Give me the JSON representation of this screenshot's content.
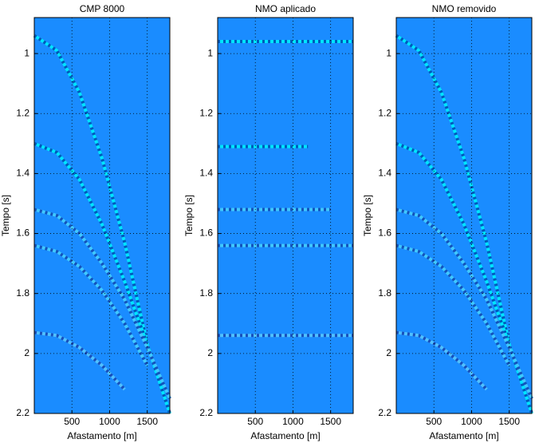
{
  "chart_data": [
    {
      "type": "line",
      "title": "CMP 8000",
      "xlabel": "Afastamento [m]",
      "ylabel": "Tempo [s]",
      "x": [
        0,
        300,
        600,
        900,
        1200,
        1500,
        1800
      ],
      "series": [
        {
          "color": "#00e5ff",
          "values": [
            0.94,
            0.99,
            1.13,
            1.35,
            1.63,
            1.97,
            null
          ]
        },
        {
          "color": "#00e5ff",
          "values": [
            1.3,
            1.33,
            1.42,
            1.57,
            1.76,
            1.97,
            2.2
          ]
        },
        {
          "color": "#40c8ff",
          "values": [
            1.52,
            1.54,
            1.6,
            1.7,
            1.82,
            1.98,
            2.15
          ]
        },
        {
          "color": "#40c8ff",
          "values": [
            1.64,
            1.66,
            1.71,
            1.79,
            1.9,
            2.04,
            null
          ]
        },
        {
          "color": "#50c0ff",
          "values": [
            1.93,
            1.94,
            1.98,
            2.04,
            2.12,
            null,
            null
          ]
        }
      ],
      "xlim": [
        0,
        1800
      ],
      "ylim": [
        0.88,
        2.2
      ],
      "y_reversed": true,
      "xticks": [
        500,
        1000,
        1500
      ],
      "yticks": [
        1,
        1.2,
        1.4,
        1.6,
        1.8,
        2,
        2.2
      ],
      "grid": true,
      "background": "#1a8cff"
    },
    {
      "type": "line",
      "title": "NMO aplicado",
      "xlabel": "Afastamento [m]",
      "ylabel": "Tempo [s]",
      "x": [
        0,
        300,
        600,
        900,
        1200,
        1500,
        1800
      ],
      "series": [
        {
          "color": "#00e5ff",
          "values": [
            0.96,
            0.96,
            0.96,
            0.96,
            0.96,
            0.96,
            0.96
          ]
        },
        {
          "color": "#00e5ff",
          "values": [
            1.31,
            1.31,
            1.31,
            1.31,
            1.31,
            null,
            null
          ]
        },
        {
          "color": "#40c8ff",
          "values": [
            1.52,
            1.52,
            1.52,
            1.52,
            1.52,
            1.52,
            null
          ]
        },
        {
          "color": "#40c8ff",
          "values": [
            1.64,
            1.64,
            1.64,
            1.64,
            1.64,
            1.64,
            1.64
          ]
        },
        {
          "color": "#50c0ff",
          "values": [
            1.94,
            1.94,
            1.94,
            1.94,
            1.94,
            1.94,
            1.94
          ]
        }
      ],
      "xlim": [
        0,
        1800
      ],
      "ylim": [
        0.88,
        2.2
      ],
      "y_reversed": true,
      "xticks": [
        500,
        1000,
        1500
      ],
      "yticks": [
        1,
        1.2,
        1.4,
        1.6,
        1.8,
        2,
        2.2
      ],
      "grid": true,
      "background": "#1a8cff"
    },
    {
      "type": "line",
      "title": "NMO removido",
      "xlabel": "Afastamento [m]",
      "ylabel": "Tempo [s]",
      "x": [
        0,
        300,
        600,
        900,
        1200,
        1500,
        1800
      ],
      "series": [
        {
          "color": "#00e5ff",
          "values": [
            0.94,
            0.99,
            1.13,
            1.35,
            1.63,
            1.97,
            null
          ]
        },
        {
          "color": "#00e5ff",
          "values": [
            1.3,
            1.33,
            1.42,
            1.57,
            1.76,
            1.97,
            2.2
          ]
        },
        {
          "color": "#40c8ff",
          "values": [
            1.52,
            1.54,
            1.6,
            1.7,
            1.82,
            1.98,
            2.15
          ]
        },
        {
          "color": "#40c8ff",
          "values": [
            1.64,
            1.66,
            1.71,
            1.79,
            1.9,
            2.04,
            null
          ]
        },
        {
          "color": "#50c0ff",
          "values": [
            1.93,
            1.94,
            1.98,
            2.04,
            2.12,
            null,
            null
          ]
        }
      ],
      "xlim": [
        0,
        1800
      ],
      "ylim": [
        0.88,
        2.2
      ],
      "y_reversed": true,
      "xticks": [
        500,
        1000,
        1500
      ],
      "yticks": [
        1,
        1.2,
        1.4,
        1.6,
        1.8,
        2,
        2.2
      ],
      "grid": true,
      "background": "#1a8cff"
    }
  ]
}
